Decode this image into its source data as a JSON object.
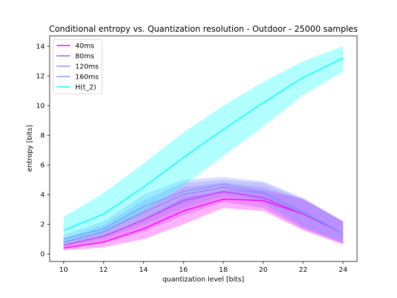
{
  "chart_data": {
    "type": "line",
    "title": "Conditional entropy vs. Quantization resolution - Outdoor - 25000 samples",
    "xlabel": "quantization level [bits]",
    "ylabel": "entropy [bits]",
    "x": [
      10,
      12,
      14,
      16,
      18,
      20,
      22,
      24
    ],
    "xticks": [
      "10",
      "12",
      "14",
      "16",
      "18",
      "20",
      "22",
      "24"
    ],
    "yticks": [
      "0",
      "2",
      "4",
      "6",
      "8",
      "10",
      "12",
      "14"
    ],
    "xlim": [
      9.3,
      24.7
    ],
    "ylim": [
      -0.5,
      14.7
    ],
    "grid": false,
    "legend_position": "upper left",
    "series": [
      {
        "name": "40ms",
        "color": "#ff00ff",
        "values": [
          0.4,
          0.8,
          1.7,
          2.9,
          3.7,
          3.6,
          2.7,
          1.4
        ],
        "lower": [
          0.25,
          0.45,
          1.0,
          2.0,
          3.1,
          2.9,
          1.6,
          0.65
        ],
        "upper": [
          0.55,
          1.15,
          2.4,
          3.8,
          4.3,
          4.3,
          3.7,
          2.2
        ]
      },
      {
        "name": "80ms",
        "color": "#bf40ff",
        "values": [
          0.6,
          1.2,
          2.3,
          3.6,
          4.2,
          3.8,
          2.7,
          1.4
        ],
        "lower": [
          0.4,
          0.75,
          1.5,
          2.6,
          3.5,
          3.1,
          1.7,
          0.7
        ],
        "upper": [
          0.8,
          1.6,
          3.0,
          4.5,
          4.8,
          4.5,
          3.7,
          2.2
        ]
      },
      {
        "name": "120ms",
        "color": "#9f7fff",
        "values": [
          0.8,
          1.5,
          2.8,
          4.0,
          4.5,
          4.1,
          2.8,
          1.4
        ],
        "lower": [
          0.55,
          1.05,
          2.0,
          3.1,
          3.9,
          3.4,
          1.8,
          0.75
        ],
        "upper": [
          1.05,
          1.95,
          3.6,
          4.8,
          5.0,
          4.8,
          3.7,
          2.2
        ]
      },
      {
        "name": "160ms",
        "color": "#7f9fff",
        "values": [
          1.0,
          1.7,
          3.2,
          4.2,
          4.7,
          4.2,
          2.9,
          1.4
        ],
        "lower": [
          0.7,
          1.2,
          2.4,
          3.4,
          4.2,
          3.6,
          1.9,
          0.8
        ],
        "upper": [
          1.3,
          2.2,
          4.0,
          5.0,
          5.2,
          4.9,
          3.8,
          2.2
        ]
      },
      {
        "name": "H(t_2)",
        "color": "#00ffff",
        "values": [
          1.6,
          2.7,
          4.5,
          6.5,
          8.4,
          10.2,
          11.9,
          13.2
        ],
        "lower": [
          0.7,
          1.4,
          2.9,
          4.6,
          6.6,
          8.6,
          10.7,
          12.3
        ],
        "upper": [
          2.5,
          4.1,
          6.1,
          8.2,
          10.0,
          11.6,
          13.0,
          14.0
        ]
      }
    ]
  }
}
